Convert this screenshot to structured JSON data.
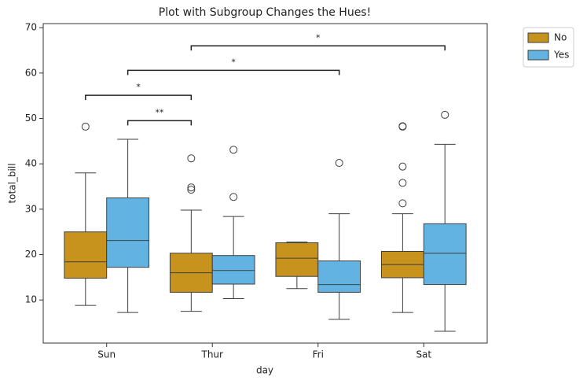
{
  "chart_data": {
    "type": "box",
    "title": "Plot with Subgroup Changes the Hues!",
    "x_label": "day",
    "y_label": "total_bill",
    "categories": [
      "Sun",
      "Thur",
      "Fri",
      "Sat"
    ],
    "ylim": [
      0.5,
      70.9
    ],
    "yticks": [
      10,
      20,
      30,
      40,
      50,
      60,
      70
    ],
    "legend_position": "outside upper right",
    "series": [
      {
        "name": "No",
        "color": "#c8931c",
        "whislo": [
          8.8,
          7.5,
          12.5,
          7.25
        ],
        "q1": [
          14.8,
          11.7,
          15.2,
          14.9
        ],
        "med": [
          18.4,
          16.0,
          19.2,
          17.8
        ],
        "q3": [
          25.0,
          20.3,
          22.6,
          20.7
        ],
        "whishi": [
          38.0,
          29.8,
          22.75,
          29.0
        ],
        "fliers": [
          [
            48.2
          ],
          [
            34.3,
            34.8,
            41.2
          ],
          [],
          [
            31.3,
            35.8,
            39.4,
            48.2,
            48.3
          ]
        ]
      },
      {
        "name": "Yes",
        "color": "#62b3e1",
        "whislo": [
          7.25,
          10.3,
          5.75,
          3.1
        ],
        "q1": [
          17.2,
          13.5,
          11.7,
          13.4
        ],
        "med": [
          23.1,
          16.5,
          13.4,
          20.3
        ],
        "q3": [
          32.5,
          19.8,
          18.6,
          26.8
        ],
        "whishi": [
          45.4,
          28.4,
          29.0,
          44.3
        ],
        "fliers": [
          [],
          [
            32.7,
            43.1
          ],
          [
            40.2
          ],
          [
            50.8
          ]
        ]
      }
    ],
    "annotations": [
      {
        "text": "**",
        "from": [
          0,
          1
        ],
        "to": [
          1,
          0
        ],
        "y": 49.5
      },
      {
        "text": "*",
        "from": [
          0,
          0
        ],
        "to": [
          1,
          0
        ],
        "y": 55.1
      },
      {
        "text": "*",
        "from": [
          0,
          1
        ],
        "to": [
          2,
          1
        ],
        "y": 60.6
      },
      {
        "text": "*",
        "from": [
          1,
          0
        ],
        "to": [
          3,
          1
        ],
        "y": 66.0
      }
    ]
  }
}
